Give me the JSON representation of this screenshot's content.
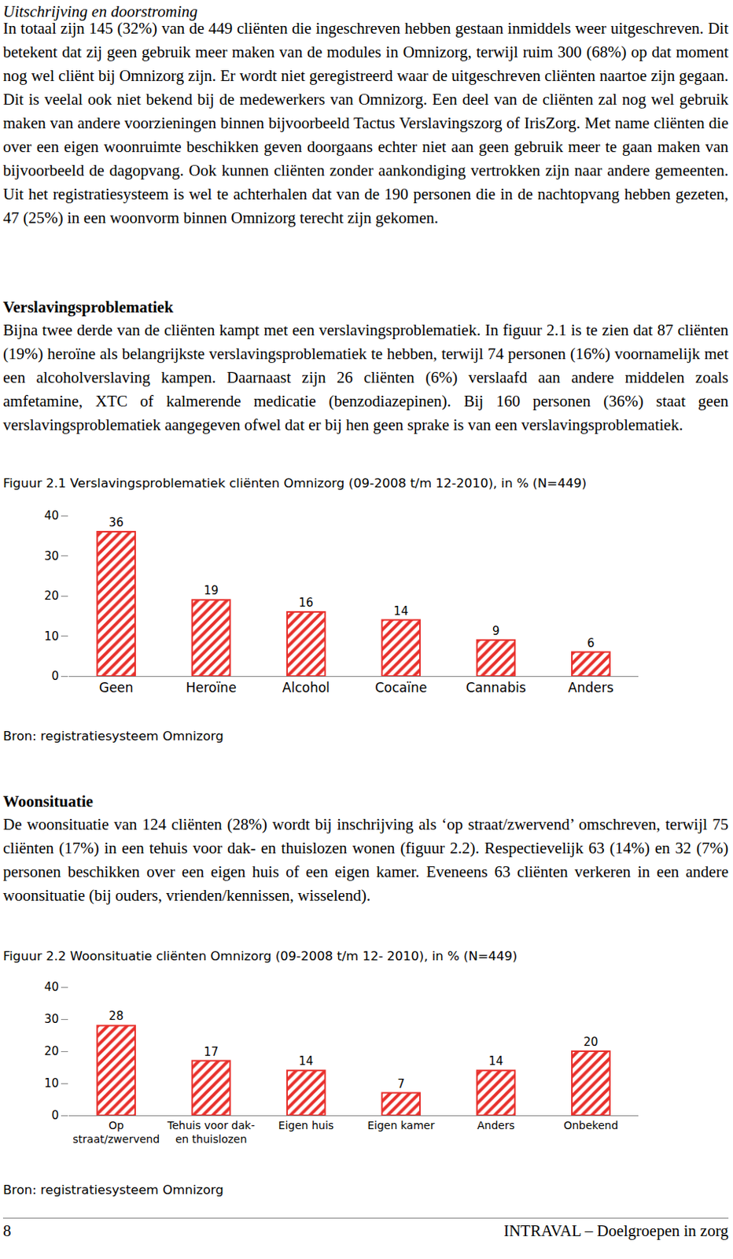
{
  "document": {
    "sections": [
      {
        "title": "Uitschrijving en doorstroming",
        "paragraphs": [
          "In totaal zijn 145 (32%) van de 449 cliënten die ingeschreven hebben gestaan inmiddels weer uitgeschreven. Dit betekent dat zij geen gebruik meer maken van de modules in Omnizorg, terwijl ruim 300 (68%) op dat moment nog wel cliënt bij Omnizorg zijn. Er wordt niet geregistreerd waar de uitgeschreven cliënten naartoe zijn gegaan. Dit is veelal ook niet bekend bij de medewerkers van Omnizorg. Een deel van de cliënten zal nog wel gebruik maken van andere voorzieningen binnen bijvoorbeeld Tactus Verslavingszorg of IrisZorg. Met name cliënten die over een eigen woonruimte beschikken geven doorgaans echter niet aan geen gebruik meer te gaan maken van bijvoorbeeld de dagopvang. Ook kunnen cliënten zonder aankondiging vertrokken zijn naar andere gemeenten. Uit het registratiesysteem is wel te achterhalen dat van de 190 personen die in de nachtopvang hebben gezeten, 47 (25%) in een woonvorm binnen Omnizorg terecht zijn gekomen."
        ]
      },
      {
        "title": "Verslavingsproblematiek",
        "paragraphs": [
          "Bijna twee derde van de cliënten kampt met een verslavingsproblematiek. In figuur 2.1 is te zien dat 87 cliënten (19%) heroïne als belangrijkste verslavingsproblematiek te hebben, terwijl 74 personen (16%) voornamelijk met een alcoholverslaving kampen. Daarnaast zijn 26 cliënten (6%) verslaafd aan andere middelen zoals amfetamine, XTC of kalmerende medicatie (benzodiazepinen). Bij 160 personen (36%) staat geen verslavingsproblematiek aangegeven ofwel dat er bij hen geen sprake is van een verslavingsproblematiek."
        ]
      },
      {
        "title": "Woonsituatie",
        "paragraphs": [
          "De woonsituatie van 124 cliënten (28%) wordt bij inschrijving als ‘op straat/zwervend’ omschreven, terwijl 75 cliënten (17%) in een tehuis voor dak- en thuislozen wonen (figuur 2.2). Respectievelijk 63 (14%) en 32 (7%) personen beschikken over een eigen huis of een eigen kamer. Eveneens 63 cliënten verkeren in een andere woonsituatie (bij ouders, vrienden/kennissen, wisselend)."
        ]
      }
    ],
    "footer": {
      "page": "8",
      "text": "INTRAVAL – Doelgroepen in zorg"
    }
  },
  "chart_data": [
    {
      "type": "bar",
      "title": "Figuur 2.1 Verslavingsproblematiek cliënten Omnizorg (09-2008 t/m 12-2010), in % (N=449)",
      "categories": [
        "Geen",
        "Heroïne",
        "Alcohol",
        "Cocaïne",
        "Cannabis",
        "Anders"
      ],
      "values": [
        36,
        19,
        16,
        14,
        9,
        6
      ],
      "color": "#e8302c",
      "ylim": [
        0,
        40
      ],
      "yticks": [
        0,
        10,
        20,
        30,
        40
      ],
      "grid": false,
      "data_labels": true,
      "source": "Bron: registratiesysteem Omnizorg"
    },
    {
      "type": "bar",
      "title": "Figuur 2.2 Woonsituatie cliënten Omnizorg (09-2008 t/m 12- 2010), in % (N=449)",
      "categories": [
        "Op\nstraat/zwervend",
        "Tehuis voor dak-\nen thuislozen",
        "Eigen huis",
        "Eigen kamer",
        "Anders",
        "Onbekend"
      ],
      "values": [
        28,
        17,
        14,
        7,
        14,
        20
      ],
      "color": "#e8302c",
      "ylim": [
        0,
        40
      ],
      "yticks": [
        0,
        10,
        20,
        30,
        40
      ],
      "grid": false,
      "data_labels": true,
      "source": "Bron: registratiesysteem Omnizorg"
    }
  ]
}
